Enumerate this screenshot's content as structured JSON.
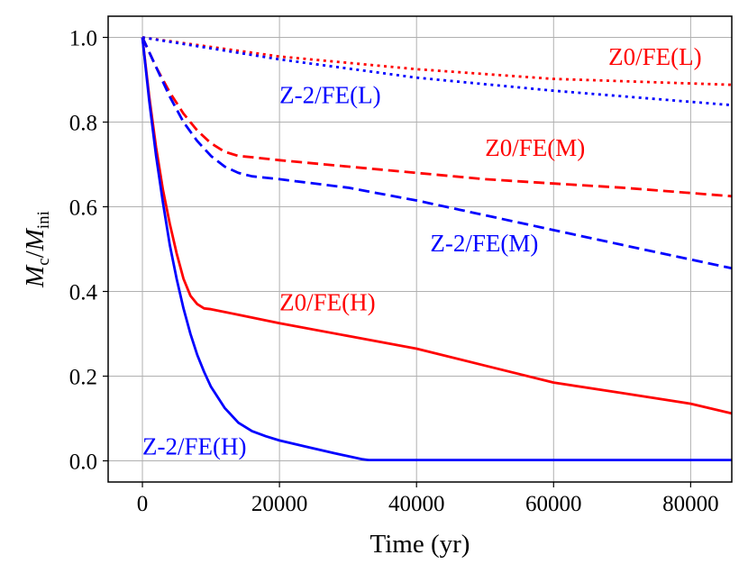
{
  "chart_data": {
    "type": "line",
    "title": "",
    "xlabel": "Time (yr)",
    "ylabel": {
      "base1": "M",
      "sub1": "c",
      "sep": "/",
      "base2": "M",
      "sub2": "ini"
    },
    "xlim": [
      -5000,
      86000
    ],
    "ylim": [
      -0.05,
      1.05
    ],
    "grid": true,
    "xticks": [
      0,
      20000,
      40000,
      60000,
      80000
    ],
    "xtick_labels": [
      "0",
      "20000",
      "40000",
      "60000",
      "80000"
    ],
    "yticks": [
      0.0,
      0.2,
      0.4,
      0.6,
      0.8,
      1.0
    ],
    "ytick_labels": [
      "0.0",
      "0.2",
      "0.4",
      "0.6",
      "0.8",
      "1.0"
    ],
    "series": [
      {
        "name": "Z0/FE(L)",
        "color": "#ff0000",
        "style": "dotted",
        "x": [
          0,
          20000,
          40000,
          60000,
          86000
        ],
        "y": [
          1.0,
          0.955,
          0.925,
          0.902,
          0.888
        ]
      },
      {
        "name": "Z-2/FE(L)",
        "color": "#0000ff",
        "style": "dotted",
        "x": [
          0,
          20000,
          40000,
          60000,
          86000
        ],
        "y": [
          1.0,
          0.948,
          0.905,
          0.874,
          0.84
        ]
      },
      {
        "name": "Z0/FE(M)",
        "color": "#ff0000",
        "style": "dashed",
        "x": [
          0,
          2000,
          4000,
          6000,
          8000,
          10000,
          12000,
          14000,
          16000,
          20000,
          30000,
          40000,
          50000,
          60000,
          70000,
          86000
        ],
        "y": [
          1.0,
          0.93,
          0.87,
          0.82,
          0.78,
          0.75,
          0.73,
          0.72,
          0.717,
          0.71,
          0.695,
          0.68,
          0.665,
          0.655,
          0.645,
          0.625
        ]
      },
      {
        "name": "Z-2/FE(M)",
        "color": "#0000ff",
        "style": "dashed",
        "x": [
          0,
          2000,
          4000,
          6000,
          8000,
          10000,
          12000,
          14000,
          16000,
          20000,
          30000,
          40000,
          50000,
          60000,
          70000,
          86000
        ],
        "y": [
          1.0,
          0.93,
          0.86,
          0.8,
          0.755,
          0.72,
          0.695,
          0.68,
          0.672,
          0.665,
          0.645,
          0.615,
          0.58,
          0.545,
          0.51,
          0.455
        ]
      },
      {
        "name": "Z0/FE(H)",
        "color": "#ff0000",
        "style": "solid",
        "x": [
          0,
          1000,
          2000,
          3000,
          4000,
          5000,
          6000,
          7000,
          8000,
          9000,
          10000,
          14000,
          20000,
          30000,
          40000,
          50000,
          60000,
          70000,
          80000,
          86000
        ],
        "y": [
          1.0,
          0.86,
          0.74,
          0.64,
          0.56,
          0.49,
          0.43,
          0.39,
          0.37,
          0.36,
          0.358,
          0.345,
          0.325,
          0.295,
          0.265,
          0.225,
          0.185,
          0.16,
          0.135,
          0.112
        ]
      },
      {
        "name": "Z-2/FE(H)",
        "color": "#0000ff",
        "style": "solid",
        "x": [
          0,
          1000,
          2000,
          3000,
          4000,
          5000,
          6000,
          7000,
          8000,
          9000,
          10000,
          12000,
          14000,
          16000,
          18000,
          20000,
          24000,
          28000,
          32000,
          33000,
          40000,
          60000,
          86000
        ],
        "y": [
          1.0,
          0.85,
          0.72,
          0.61,
          0.51,
          0.43,
          0.36,
          0.3,
          0.25,
          0.21,
          0.175,
          0.125,
          0.09,
          0.07,
          0.058,
          0.048,
          0.033,
          0.018,
          0.004,
          0.002,
          0.002,
          0.002,
          0.002
        ]
      }
    ],
    "annotations": [
      {
        "text": "Z0/FE(L)",
        "x": 68000,
        "y": 0.935,
        "color": "#ff0000"
      },
      {
        "text": "Z-2/FE(L)",
        "x": 20000,
        "y": 0.845,
        "color": "#0000ff"
      },
      {
        "text": "Z0/FE(M)",
        "x": 50000,
        "y": 0.72,
        "color": "#ff0000"
      },
      {
        "text": "Z-2/FE(M)",
        "x": 42000,
        "y": 0.495,
        "color": "#0000ff"
      },
      {
        "text": "Z0/FE(H)",
        "x": 20000,
        "y": 0.355,
        "color": "#ff0000"
      },
      {
        "text": "Z-2/FE(H)",
        "x": 0,
        "y": 0.015,
        "color": "#0000ff"
      }
    ]
  }
}
